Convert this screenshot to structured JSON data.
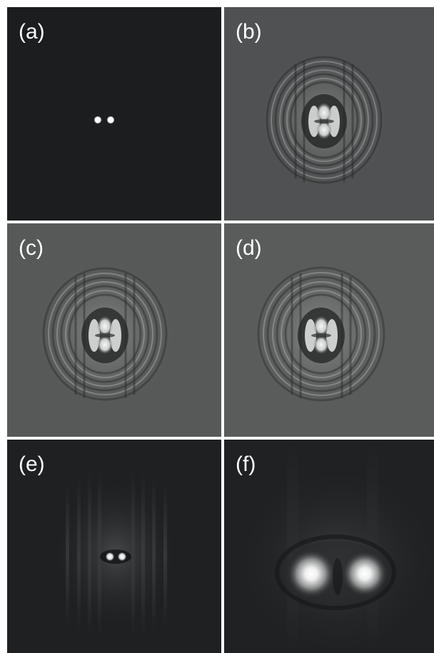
{
  "figure": {
    "panels": [
      {
        "id": "a",
        "label": "(a)",
        "background": "#1c1d1f"
      },
      {
        "id": "b",
        "label": "(b)",
        "background": "#4f5152"
      },
      {
        "id": "c",
        "label": "(c)",
        "background": "#575959"
      },
      {
        "id": "d",
        "label": "(d)",
        "background": "#5a5c5c"
      },
      {
        "id": "e",
        "label": "(e)",
        "background": "#1e2022"
      },
      {
        "id": "f",
        "label": "(f)",
        "background": "#1f2122"
      }
    ]
  },
  "colors": {
    "separator": "#ffffff",
    "label_text": "#ffffff",
    "spot": "#ffffff"
  }
}
